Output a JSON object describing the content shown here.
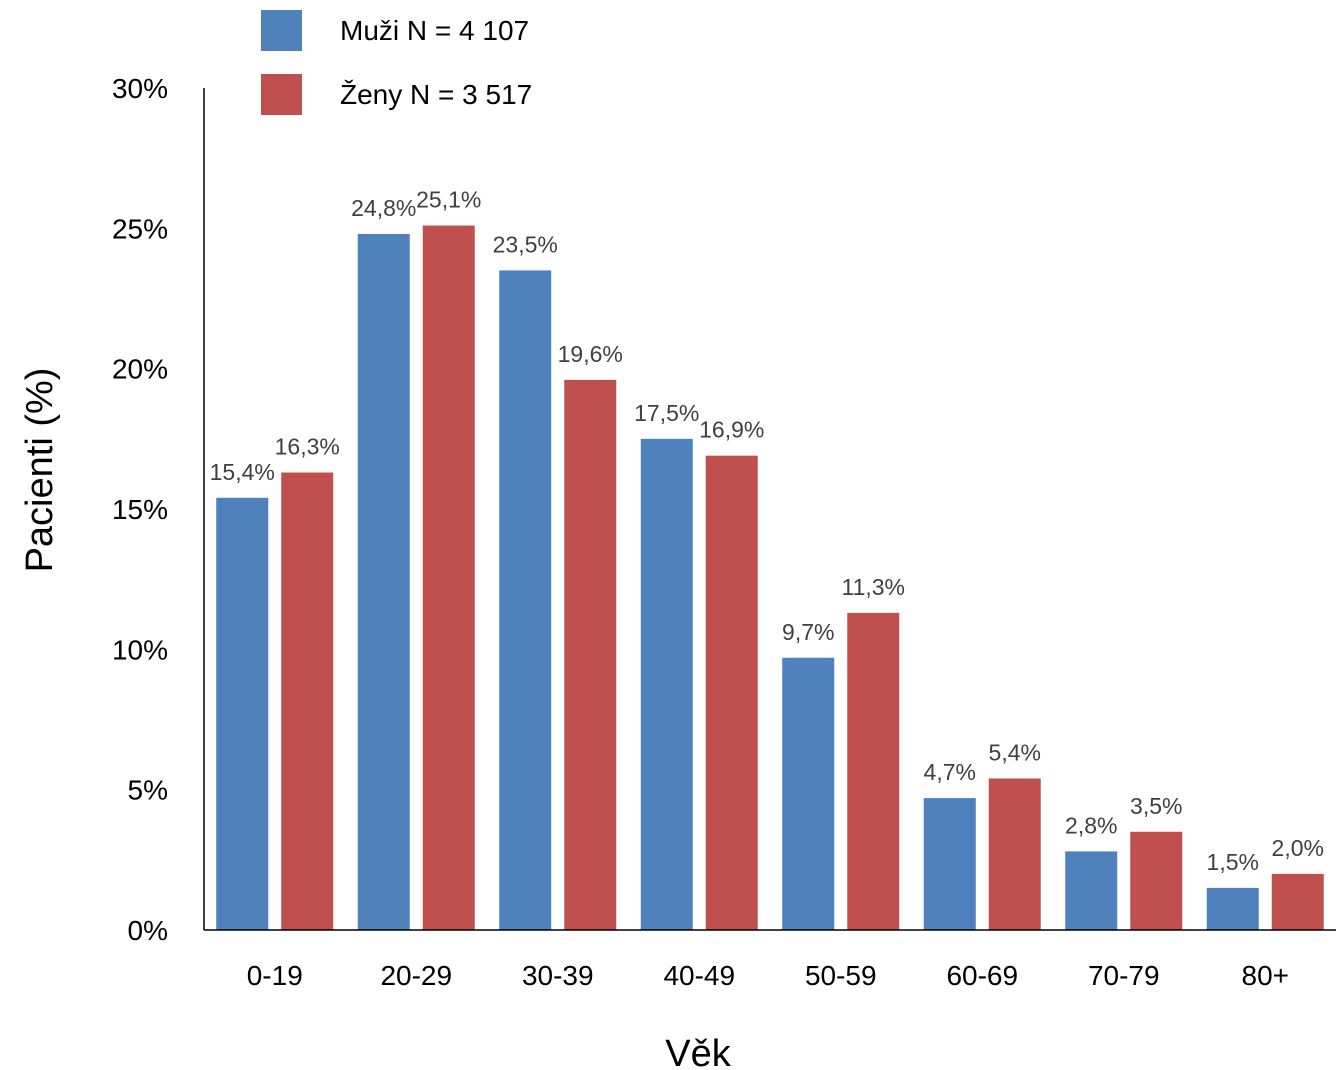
{
  "chart_data": {
    "type": "bar",
    "title": "",
    "xlabel": "Věk",
    "ylabel": "Pacienti (%)",
    "ylim": [
      0,
      30
    ],
    "y_ticks": [
      "0%",
      "5%",
      "10%",
      "15%",
      "20%",
      "25%",
      "30%"
    ],
    "y_tick_values": [
      0,
      5,
      10,
      15,
      20,
      25,
      30
    ],
    "grid": false,
    "legend_position": "top-left",
    "categories": [
      "0-19",
      "20-29",
      "30-39",
      "40-49",
      "50-59",
      "60-69",
      "70-79",
      "80+"
    ],
    "series": [
      {
        "name": "Muži N = 4 107",
        "color": "#4f81bd",
        "values": [
          15.4,
          24.8,
          23.5,
          17.5,
          9.7,
          4.7,
          2.8,
          1.5
        ],
        "labels": [
          "15,4%",
          "24,8%",
          "23,5%",
          "17,5%",
          "9,7%",
          "4,7%",
          "2,8%",
          "1,5%"
        ]
      },
      {
        "name": "Ženy N = 3 517",
        "color": "#c0504d",
        "values": [
          16.3,
          25.1,
          19.6,
          16.9,
          11.3,
          5.4,
          3.5,
          2.0
        ],
        "labels": [
          "16,3%",
          "25,1%",
          "19,6%",
          "16,9%",
          "11,3%",
          "5,4%",
          "3,5%",
          "2,0%"
        ]
      }
    ]
  }
}
